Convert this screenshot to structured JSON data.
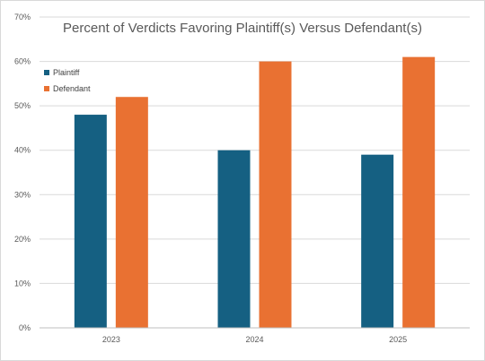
{
  "chart_data": {
    "type": "bar",
    "title": "Percent of Verdicts Favoring Plaintiff(s) Versus Defendant(s)",
    "categories": [
      "2023",
      "2024",
      "2025"
    ],
    "series": [
      {
        "name": "Plaintiff",
        "values": [
          48,
          40,
          39
        ],
        "color": "#156082"
      },
      {
        "name": "Defendant",
        "values": [
          52,
          60,
          61
        ],
        "color": "#E97132"
      }
    ],
    "y_ticks": [
      "0%",
      "10%",
      "20%",
      "30%",
      "40%",
      "50%",
      "60%",
      "70%"
    ],
    "ylim": [
      0,
      70
    ],
    "grid": true,
    "legend_position": "top-left"
  }
}
